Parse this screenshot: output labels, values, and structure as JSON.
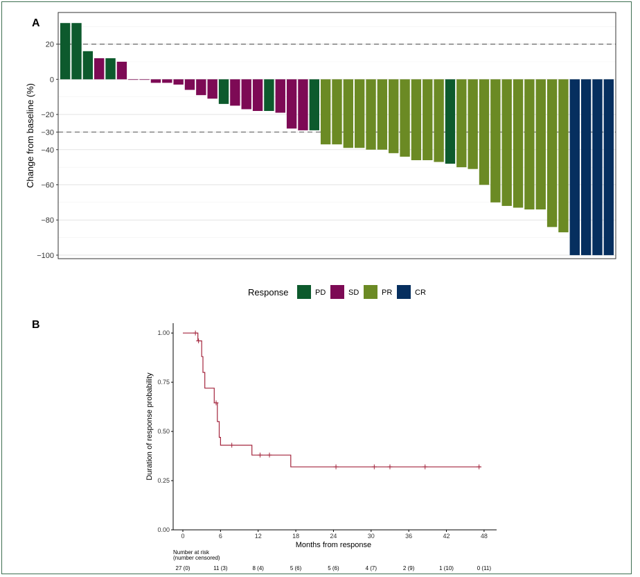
{
  "chart_data": [
    {
      "type": "bar",
      "panel": "A",
      "ylabel": "Change from baseline (%)",
      "ylim": [
        -102,
        38
      ],
      "yticks": [
        20,
        0,
        -20,
        -30,
        -40,
        -60,
        -80,
        -100
      ],
      "ytick_labels": [
        "20",
        "0",
        "−20",
        "−30",
        "−40",
        "−60",
        "−80",
        "−100"
      ],
      "reference_lines": [
        20,
        -30
      ],
      "grid": true,
      "legend": {
        "title": "Response",
        "placement": "bottom",
        "entries": [
          {
            "key": "PD",
            "label": "PD",
            "color": "#0d5a2d"
          },
          {
            "key": "SD",
            "label": "SD",
            "color": "#7d0a55"
          },
          {
            "key": "PR",
            "label": "PR",
            "color": "#6b8a24"
          },
          {
            "key": "CR",
            "label": "CR",
            "color": "#062f5f"
          }
        ]
      },
      "bars": [
        {
          "value": 32,
          "response": "PD"
        },
        {
          "value": 32,
          "response": "PD"
        },
        {
          "value": 16,
          "response": "PD"
        },
        {
          "value": 12,
          "response": "SD"
        },
        {
          "value": 12,
          "response": "PD"
        },
        {
          "value": 10,
          "response": "SD"
        },
        {
          "value": -0.3,
          "response": "SD"
        },
        {
          "value": -0.3,
          "response": "SD"
        },
        {
          "value": -2,
          "response": "SD"
        },
        {
          "value": -2,
          "response": "SD"
        },
        {
          "value": -3,
          "response": "SD"
        },
        {
          "value": -6,
          "response": "SD"
        },
        {
          "value": -9,
          "response": "SD"
        },
        {
          "value": -11,
          "response": "SD"
        },
        {
          "value": -14,
          "response": "PD"
        },
        {
          "value": -15,
          "response": "SD"
        },
        {
          "value": -17,
          "response": "SD"
        },
        {
          "value": -18,
          "response": "SD"
        },
        {
          "value": -18,
          "response": "PD"
        },
        {
          "value": -19,
          "response": "SD"
        },
        {
          "value": -28,
          "response": "SD"
        },
        {
          "value": -29,
          "response": "SD"
        },
        {
          "value": -29,
          "response": "PD"
        },
        {
          "value": -37,
          "response": "PR"
        },
        {
          "value": -37,
          "response": "PR"
        },
        {
          "value": -39,
          "response": "PR"
        },
        {
          "value": -39,
          "response": "PR"
        },
        {
          "value": -40,
          "response": "PR"
        },
        {
          "value": -40,
          "response": "PR"
        },
        {
          "value": -42,
          "response": "PR"
        },
        {
          "value": -44,
          "response": "PR"
        },
        {
          "value": -46,
          "response": "PR"
        },
        {
          "value": -46,
          "response": "PR"
        },
        {
          "value": -47,
          "response": "PR"
        },
        {
          "value": -48,
          "response": "PD"
        },
        {
          "value": -50,
          "response": "PR"
        },
        {
          "value": -51,
          "response": "PR"
        },
        {
          "value": -60,
          "response": "PR"
        },
        {
          "value": -70,
          "response": "PR"
        },
        {
          "value": -72,
          "response": "PR"
        },
        {
          "value": -73,
          "response": "PR"
        },
        {
          "value": -74,
          "response": "PR"
        },
        {
          "value": -74,
          "response": "PR"
        },
        {
          "value": -84,
          "response": "PR"
        },
        {
          "value": -87,
          "response": "PR"
        },
        {
          "value": -100,
          "response": "CR"
        },
        {
          "value": -100,
          "response": "CR"
        },
        {
          "value": -100,
          "response": "CR"
        },
        {
          "value": -100,
          "response": "CR"
        }
      ]
    },
    {
      "type": "line",
      "panel": "B",
      "xlabel": "Months from response",
      "ylabel": "Duration of response probability",
      "xlim": [
        0,
        50
      ],
      "ylim": [
        0,
        1.05
      ],
      "xticks": [
        0,
        6,
        12,
        18,
        24,
        30,
        36,
        42,
        48
      ],
      "yticks": [
        0,
        0.25,
        0.5,
        0.75,
        1.0
      ],
      "ytick_labels": [
        "0.00",
        "0.25",
        "0.50",
        "0.75",
        "1.00"
      ],
      "line_color": "#a3243c",
      "curve": [
        {
          "x": 0,
          "y": 1.0
        },
        {
          "x": 2.4,
          "y": 1.0
        },
        {
          "x": 2.4,
          "y": 0.96
        },
        {
          "x": 3.0,
          "y": 0.96
        },
        {
          "x": 3.0,
          "y": 0.88
        },
        {
          "x": 3.2,
          "y": 0.88
        },
        {
          "x": 3.2,
          "y": 0.8
        },
        {
          "x": 3.5,
          "y": 0.8
        },
        {
          "x": 3.5,
          "y": 0.72
        },
        {
          "x": 5.0,
          "y": 0.72
        },
        {
          "x": 5.0,
          "y": 0.645
        },
        {
          "x": 5.5,
          "y": 0.645
        },
        {
          "x": 5.5,
          "y": 0.55
        },
        {
          "x": 5.8,
          "y": 0.55
        },
        {
          "x": 5.8,
          "y": 0.47
        },
        {
          "x": 6.0,
          "y": 0.47
        },
        {
          "x": 6.0,
          "y": 0.43
        },
        {
          "x": 11.0,
          "y": 0.43
        },
        {
          "x": 11.0,
          "y": 0.38
        },
        {
          "x": 17.2,
          "y": 0.38
        },
        {
          "x": 17.2,
          "y": 0.32
        },
        {
          "x": 47.5,
          "y": 0.32
        }
      ],
      "censored": [
        {
          "x": 2.0,
          "y": 1.0
        },
        {
          "x": 2.5,
          "y": 0.96
        },
        {
          "x": 5.3,
          "y": 0.645
        },
        {
          "x": 7.8,
          "y": 0.43
        },
        {
          "x": 12.3,
          "y": 0.38
        },
        {
          "x": 13.8,
          "y": 0.38
        },
        {
          "x": 24.4,
          "y": 0.32
        },
        {
          "x": 30.5,
          "y": 0.32
        },
        {
          "x": 33.0,
          "y": 0.32
        },
        {
          "x": 38.6,
          "y": 0.32
        },
        {
          "x": 47.2,
          "y": 0.32
        }
      ],
      "risk_table": {
        "title_line1": "Number at risk",
        "title_line2": "(number censored)",
        "entries": [
          {
            "x": 0,
            "label": "27 (0)"
          },
          {
            "x": 6,
            "label": "11 (3)"
          },
          {
            "x": 12,
            "label": "8 (4)"
          },
          {
            "x": 18,
            "label": "5 (6)"
          },
          {
            "x": 24,
            "label": "5 (6)"
          },
          {
            "x": 30,
            "label": "4 (7)"
          },
          {
            "x": 36,
            "label": "2 (9)"
          },
          {
            "x": 42,
            "label": "1 (10)"
          },
          {
            "x": 48,
            "label": "0 (11)"
          }
        ]
      }
    }
  ],
  "figure": {
    "panel_a_label": "A",
    "panel_b_label": "B"
  }
}
